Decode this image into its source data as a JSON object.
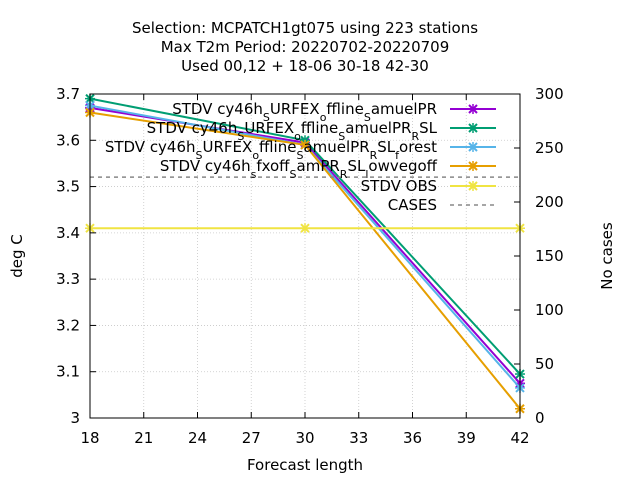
{
  "chart_data": {
    "type": "line",
    "title_lines": [
      "Selection: MCPATCH1gt075 using   223 stations",
      "Max T2m   Period: 20220702-20220709",
      "Used  00,12  + 18-06 30-18 42-30"
    ],
    "xlabel": "Forecast length",
    "ylabel": "deg C",
    "y2label": "No cases",
    "x_ticks": [
      18,
      21,
      24,
      27,
      30,
      33,
      36,
      39,
      42
    ],
    "y_ticks": [
      3,
      3.1,
      3.2,
      3.3,
      3.4,
      3.5,
      3.6,
      3.7
    ],
    "y2_ticks": [
      0,
      50,
      100,
      150,
      200,
      250,
      300
    ],
    "xlim": [
      18,
      42
    ],
    "ylim": [
      3.0,
      3.7
    ],
    "y2lim": [
      0,
      300
    ],
    "grid": true,
    "legend_position": "top-right",
    "series": [
      {
        "legend": [
          [
            "STDV cy46h",
            "_",
            "S"
          ],
          [
            "URFEX",
            "_",
            "o"
          ],
          [
            "ffline",
            "_",
            "S"
          ],
          [
            "amuelPR",
            ""
          ]
        ],
        "color": "#9400d3",
        "marker": "x",
        "dash": false,
        "axis": "y",
        "x": [
          18,
          30,
          42
        ],
        "values": [
          3.67,
          3.595,
          3.075
        ]
      },
      {
        "legend": [
          [
            "STDV cy46h",
            "_",
            "S"
          ],
          [
            "URFEX",
            "_",
            "o"
          ],
          [
            "ffline",
            "_",
            "S"
          ],
          [
            "amuelPR",
            "_",
            "R"
          ],
          [
            "SL",
            ""
          ]
        ],
        "color": "#009e73",
        "marker": "x",
        "dash": false,
        "axis": "y",
        "x": [
          18,
          30,
          42
        ],
        "values": [
          3.69,
          3.6,
          3.095
        ]
      },
      {
        "legend": [
          [
            "STDV cy46h",
            "_",
            "S"
          ],
          [
            "URFEX",
            "_",
            "o"
          ],
          [
            "ffline",
            "_",
            "S"
          ],
          [
            "amuelPR",
            "_",
            "R"
          ],
          [
            "SL",
            "_",
            "f"
          ],
          [
            "orest",
            ""
          ]
        ],
        "color": "#56b4e9",
        "marker": "x",
        "dash": false,
        "axis": "y",
        "x": [
          18,
          30,
          42
        ],
        "values": [
          3.675,
          3.59,
          3.065
        ]
      },
      {
        "legend": [
          [
            "STDV cy46h",
            "_",
            "s"
          ],
          [
            "fxoff",
            "_",
            "S"
          ],
          [
            "amPR",
            "_",
            "R"
          ],
          [
            "SL",
            "_",
            "l"
          ],
          [
            "owvegoff",
            ""
          ]
        ],
        "color": "#e69f00",
        "marker": "x",
        "dash": false,
        "axis": "y",
        "x": [
          18,
          30,
          42
        ],
        "values": [
          3.66,
          3.59,
          3.02
        ]
      },
      {
        "legend": [
          [
            "STDV OBS",
            ""
          ]
        ],
        "color": "#f0e442",
        "marker": "x",
        "dash": false,
        "axis": "y",
        "x": [
          18,
          30,
          42
        ],
        "values": [
          3.41,
          3.41,
          3.41
        ]
      },
      {
        "legend": [
          [
            "CASES",
            ""
          ]
        ],
        "color": "#888888",
        "marker": "",
        "dash": true,
        "axis": "y2",
        "x": [
          18,
          42
        ],
        "values": [
          223,
          223
        ]
      }
    ]
  }
}
